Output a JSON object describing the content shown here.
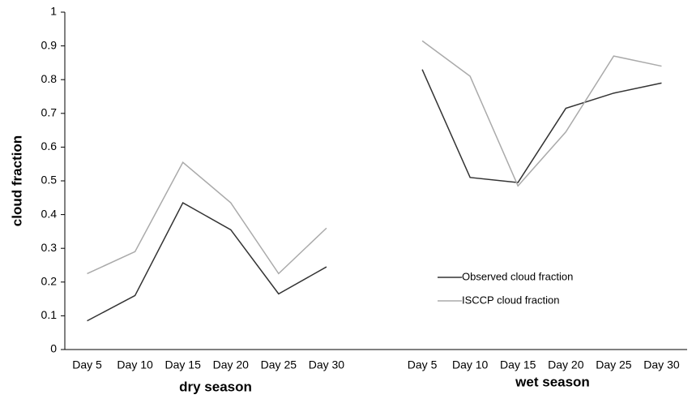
{
  "chart_data": {
    "type": "line",
    "y_label": "cloud fraction",
    "annotations": [
      "dry season",
      "wet season"
    ],
    "categories": [
      "Day 5",
      "Day 10",
      "Day 15",
      "Day 20",
      "Day 25",
      "Day 30",
      null,
      "Day 5",
      "Day 10",
      "Day 15",
      "Day 20",
      "Day 25",
      "Day 30"
    ],
    "series": [
      {
        "name": "Observed cloud fraction",
        "color": "#333333",
        "values": [
          0.085,
          0.16,
          0.435,
          0.355,
          0.165,
          0.245,
          null,
          0.83,
          0.51,
          0.495,
          0.715,
          0.76,
          0.79
        ]
      },
      {
        "name": "ISCCP cloud fraction",
        "color": "#aaaaaa",
        "values": [
          0.225,
          0.29,
          0.555,
          0.435,
          0.225,
          0.36,
          null,
          0.915,
          0.81,
          0.485,
          0.645,
          0.87,
          0.84
        ]
      }
    ],
    "ylim": [
      0,
      1
    ],
    "yticks": [
      0,
      0.1,
      0.2,
      0.3,
      0.4,
      0.5,
      0.6,
      0.7,
      0.8,
      0.9,
      1
    ],
    "grid": false,
    "legend": "lower right"
  }
}
